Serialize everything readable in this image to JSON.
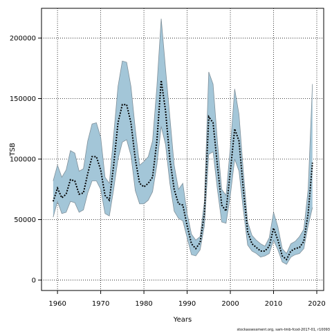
{
  "chart_data": {
    "type": "line",
    "xlabel": "Years",
    "ylabel": "TSB",
    "footer": "stockassessment.org, sam-tmb-fcod-2017-01, r10093",
    "x": [
      1959,
      1960,
      1961,
      1962,
      1963,
      1964,
      1965,
      1966,
      1967,
      1968,
      1969,
      1970,
      1971,
      1972,
      1973,
      1974,
      1975,
      1976,
      1977,
      1978,
      1979,
      1980,
      1981,
      1982,
      1983,
      1984,
      1985,
      1986,
      1987,
      1988,
      1989,
      1990,
      1991,
      1992,
      1993,
      1994,
      1995,
      1996,
      1997,
      1998,
      1999,
      2000,
      2001,
      2002,
      2003,
      2004,
      2005,
      2006,
      2007,
      2008,
      2009,
      2010,
      2011,
      2012,
      2013,
      2014,
      2015,
      2016,
      2017,
      2018,
      2019
    ],
    "series": [
      {
        "color": "#000000",
        "values": [
          65000,
          76000,
          68000,
          71000,
          83000,
          82000,
          71000,
          72000,
          88000,
          102000,
          102000,
          91000,
          70000,
          66000,
          95000,
          130000,
          145000,
          145000,
          130000,
          100000,
          80000,
          77000,
          80000,
          85000,
          115000,
          165000,
          140000,
          100000,
          75000,
          63000,
          62000,
          45000,
          30000,
          26000,
          31000,
          55000,
          135000,
          130000,
          95000,
          62000,
          57000,
          90000,
          125000,
          115000,
          75000,
          40000,
          30000,
          27000,
          24000,
          24000,
          28000,
          43000,
          33000,
          20000,
          17000,
          24000,
          26000,
          27000,
          32000,
          55000,
          97000
        ]
      }
    ],
    "band": {
      "color": "#a3c6d8",
      "edge": "#7f8f99",
      "upper": [
        82000,
        95000,
        85000,
        91000,
        107000,
        105000,
        90000,
        92000,
        115000,
        129000,
        130000,
        118000,
        85000,
        80000,
        120000,
        160000,
        181000,
        180000,
        160000,
        125000,
        95000,
        98000,
        102000,
        115000,
        160000,
        216000,
        175000,
        135000,
        95000,
        75000,
        80000,
        55000,
        38000,
        33000,
        36000,
        65000,
        172000,
        162000,
        115000,
        75000,
        70000,
        110000,
        158000,
        137000,
        90000,
        48000,
        37000,
        33000,
        30000,
        28000,
        35000,
        56000,
        44000,
        26000,
        22000,
        30000,
        32000,
        36000,
        42000,
        75000,
        162000
      ],
      "lower": [
        52000,
        65000,
        55000,
        56000,
        65000,
        64000,
        56000,
        58000,
        72000,
        82000,
        82000,
        75000,
        55000,
        53000,
        75000,
        100000,
        114000,
        116000,
        103000,
        74000,
        63000,
        63000,
        66000,
        73000,
        95000,
        127000,
        112000,
        80000,
        57000,
        51000,
        49000,
        35000,
        21000,
        20000,
        25000,
        45000,
        104000,
        106000,
        75000,
        48000,
        47000,
        70000,
        100000,
        90000,
        58000,
        29000,
        24000,
        22000,
        19000,
        20000,
        22000,
        33000,
        25000,
        15000,
        13000,
        19000,
        21000,
        22000,
        26000,
        45000,
        60000
      ]
    },
    "xlim": [
      1956.3,
      2021.6
    ],
    "ylim": [
      -8600,
      224600
    ],
    "xticks": [
      1960,
      1970,
      1980,
      1990,
      2000,
      2010,
      2020
    ],
    "yticks": [
      0,
      50000,
      100000,
      150000,
      200000
    ],
    "grid": true
  }
}
